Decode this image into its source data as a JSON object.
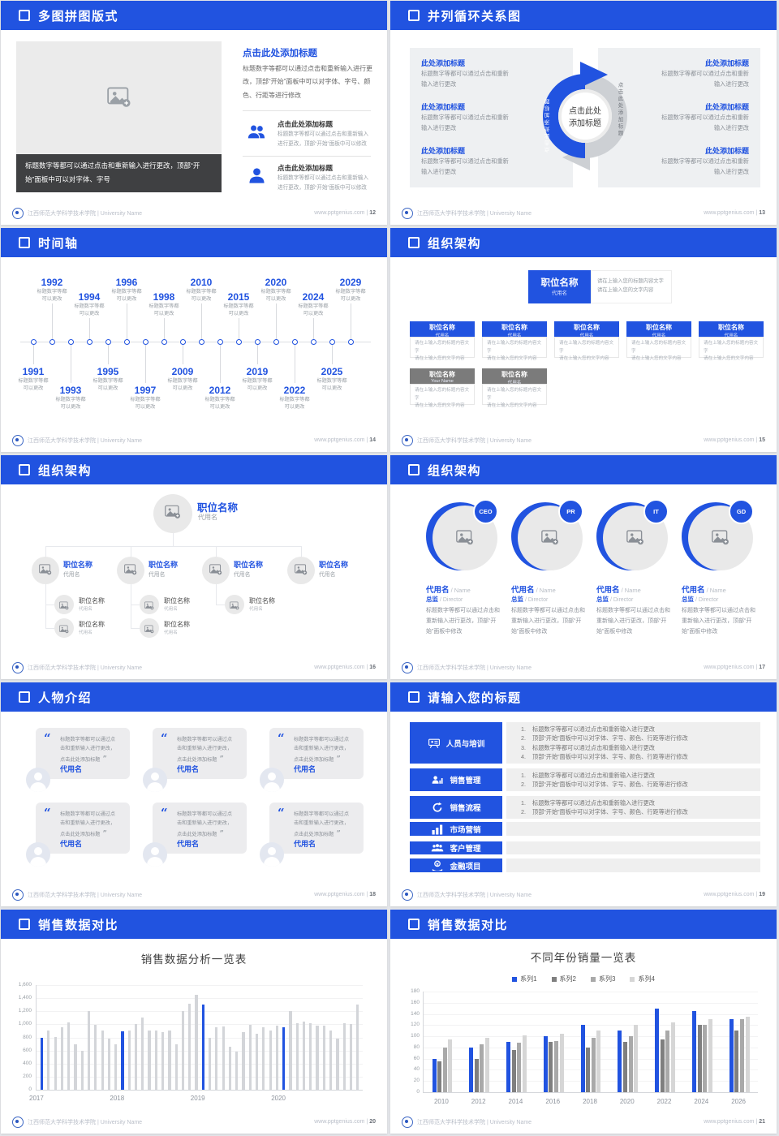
{
  "footer": {
    "org": "江西师范大学科学技术学院",
    "sep": "|",
    "org_en": "University Name",
    "site": "www.pptgenius.com"
  },
  "colors": {
    "accent": "#2153e0",
    "bar_gray": "#d3d5d9",
    "panel_gray": "#eef0f2",
    "dark_caption": "#3f4042"
  },
  "icons": {
    "quote_open": "“",
    "quote_close": "”"
  },
  "slides": {
    "s1": {
      "title": "多图拼图版式",
      "page": "12",
      "caption": "标题数字等都可以通过点击和重新输入进行更改，顶部“开始”面板中可以对字体、字号",
      "right_title": "点击此处添加标题",
      "right_body": "标题数字等都可以通过点击和重新输入进行更改，顶部“开始”面板中可以对字体、字号、颜色、行距等进行修改",
      "items": [
        {
          "icon": "users",
          "title": "点击此处添加标题",
          "text": "标题数字等都可以通过点击和重新输入进行更改，顶部“开始”面板中可以修改"
        },
        {
          "icon": "user",
          "title": "点击此处添加标题",
          "text": "标题数字等都可以通过点击和重新输入进行更改，顶部“开始”面板中可以修改"
        }
      ]
    },
    "s2": {
      "title": "并列循环关系图",
      "page": "13",
      "center_l1": "点击此处",
      "center_l2": "添加标题",
      "arc_label_left": "点击此处添加标题",
      "arc_label_right": "点击此处添加标题",
      "left_items": [
        {
          "title": "此处添加标题",
          "text": "标题数字等都可以通过点击和重新输入进行更改"
        },
        {
          "title": "此处添加标题",
          "text": "标题数字等都可以通过点击和重新输入进行更改"
        },
        {
          "title": "此处添加标题",
          "text": "标题数字等都可以通过点击和重新输入进行更改"
        }
      ],
      "right_items": [
        {
          "title": "此处添加标题",
          "text": "标题数字等都可以通过点击和重新输入进行更改"
        },
        {
          "title": "此处添加标题",
          "text": "标题数字等都可以通过点击和重新输入进行更改"
        },
        {
          "title": "此处添加标题",
          "text": "标题数字等都可以通过点击和重新输入进行更改"
        }
      ]
    },
    "s3": {
      "title": "时间轴",
      "page": "14",
      "note_l1": "标题数字等都",
      "note_l2": "可以更改",
      "points": [
        {
          "year": "1991",
          "dir": "down",
          "far": false
        },
        {
          "year": "1992",
          "dir": "up",
          "far": true
        },
        {
          "year": "1993",
          "dir": "down",
          "far": true
        },
        {
          "year": "1994",
          "dir": "up",
          "far": false
        },
        {
          "year": "1995",
          "dir": "down",
          "far": false
        },
        {
          "year": "1996",
          "dir": "up",
          "far": true
        },
        {
          "year": "1997",
          "dir": "down",
          "far": true
        },
        {
          "year": "1998",
          "dir": "up",
          "far": false
        },
        {
          "year": "2009",
          "dir": "down",
          "far": false
        },
        {
          "year": "2010",
          "dir": "up",
          "far": true
        },
        {
          "year": "2012",
          "dir": "down",
          "far": true
        },
        {
          "year": "2015",
          "dir": "up",
          "far": false
        },
        {
          "year": "2019",
          "dir": "down",
          "far": false
        },
        {
          "year": "2020",
          "dir": "up",
          "far": true
        },
        {
          "year": "2022",
          "dir": "down",
          "far": true
        },
        {
          "year": "2024",
          "dir": "up",
          "far": false
        },
        {
          "year": "2025",
          "dir": "down",
          "far": false
        },
        {
          "year": "2029",
          "dir": "up",
          "far": true
        }
      ]
    },
    "s4": {
      "title": "组织架构",
      "page": "15",
      "root": {
        "title": "职位名称",
        "sub": "代用名"
      },
      "note_l1": "请在上输入您的标题内容文字",
      "note_l2": "请在上输入您的文字内容",
      "row1": [
        {
          "title": "职位名称",
          "sub": "代用名",
          "l1": "请在上输入您的标题内容文字",
          "l2": "请在上输入您的文字内容"
        },
        {
          "title": "职位名称",
          "sub": "代用名",
          "l1": "请在上输入您的标题内容文字",
          "l2": "请在上输入您的文字内容"
        },
        {
          "title": "职位名称",
          "sub": "代用名",
          "l1": "请在上输入您的标题内容文字",
          "l2": "请在上输入您的文字内容"
        },
        {
          "title": "职位名称",
          "sub": "代用名",
          "l1": "请在上输入您的标题内容文字",
          "l2": "请在上输入您的文字内容"
        },
        {
          "title": "职位名称",
          "sub": "代用名",
          "l1": "请在上输入您的标题内容文字",
          "l2": "请在上输入您的文字内容"
        }
      ],
      "row2": [
        {
          "title": "职位名称",
          "sub": "Your Name",
          "l1": "请在上输入您的标题内容文字",
          "l2": "请在上输入您的文字内容"
        },
        {
          "title": "职位名称",
          "sub": "代用名",
          "l1": "请在上输入您的标题内容文字",
          "l2": "请在上输入您的文字内容"
        }
      ]
    },
    "s5": {
      "title": "组织架构",
      "page": "16",
      "root": {
        "title": "职位名称",
        "sub": "代用名"
      },
      "cols": [
        {
          "title": "职位名称",
          "sub": "代用名",
          "children": [
            {
              "title": "职位名称",
              "sub": "代用名"
            },
            {
              "title": "职位名称",
              "sub": "代用名"
            }
          ]
        },
        {
          "title": "职位名称",
          "sub": "代用名",
          "children": [
            {
              "title": "职位名称",
              "sub": "代用名"
            },
            {
              "title": "职位名称",
              "sub": "代用名"
            }
          ]
        },
        {
          "title": "职位名称",
          "sub": "代用名",
          "children": [
            {
              "title": "职位名称",
              "sub": "代用名"
            }
          ]
        },
        {
          "title": "职位名称",
          "sub": "代用名",
          "children": []
        }
      ]
    },
    "s6": {
      "title": "组织架构",
      "page": "17",
      "cards": [
        {
          "badge": "CEO",
          "name": "代用名",
          "name_en": "Name",
          "role": "总监",
          "role_en": "Director",
          "text": "标题数字等都可以通过点击和重新输入进行更改，顶部“开始”面板中修改"
        },
        {
          "badge": "PR",
          "name": "代用名",
          "name_en": "Name",
          "role": "总监",
          "role_en": "Director",
          "text": "标题数字等都可以通过点击和重新输入进行更改，顶部“开始”面板中修改"
        },
        {
          "badge": "IT",
          "name": "代用名",
          "name_en": "Name",
          "role": "总监",
          "role_en": "Director",
          "text": "标题数字等都可以通过点击和重新输入进行更改，顶部“开始”面板中修改"
        },
        {
          "badge": "GD",
          "name": "代用名",
          "name_en": "Name",
          "role": "总监",
          "role_en": "Director",
          "text": "标题数字等都可以通过点击和重新输入进行更改，顶部“开始”面板中修改"
        }
      ]
    },
    "s7": {
      "title": "人物介绍",
      "page": "18",
      "cards": [
        {
          "text": "标题数字等都可以通过点击和重新输入进行更改，点击此处添加标题",
          "name": "代用名"
        },
        {
          "text": "标题数字等都可以通过点击和重新输入进行更改，点击此处添加标题",
          "name": "代用名"
        },
        {
          "text": "标题数字等都可以通过点击和重新输入进行更改，点击此处添加标题",
          "name": "代用名"
        },
        {
          "text": "标题数字等都可以通过点击和重新输入进行更改，点击此处添加标题",
          "name": "代用名"
        },
        {
          "text": "标题数字等都可以通过点击和重新输入进行更改，点击此处添加标题",
          "name": "代用名"
        },
        {
          "text": "标题数字等都可以通过点击和重新输入进行更改，点击此处添加标题",
          "name": "代用名"
        }
      ]
    },
    "s8": {
      "title": "请输入您的标题",
      "page": "19",
      "rows": [
        {
          "icon": "training",
          "label": "人员与培训",
          "numbered": true,
          "lines": [
            "标题数字等都可以通过点击和重新输入进行更改",
            "顶部“开始”面板中可以对字体、字号、颜色、行距等进行修改",
            "标题数字等都可以通过点击和重新输入进行更改",
            "顶部“开始”面板中可以对字体、字号、颜色、行距等进行修改"
          ]
        },
        {
          "icon": "sales",
          "label": "销售管理",
          "numbered": true,
          "lines": [
            "标题数字等都可以通过点击和重新输入进行更改",
            "顶部“开始”面板中可以对字体、字号、颜色、行距等进行修改"
          ]
        },
        {
          "icon": "cycle",
          "label": "销售流程",
          "numbered": true,
          "lines": [
            "标题数字等都可以通过点击和重新输入进行更改",
            "顶部“开始”面板中可以对字体、字号、颜色、行距等进行修改"
          ]
        },
        {
          "icon": "chart",
          "label": "市场营销",
          "numbered": false,
          "lines": [
            "标题数字等都可以通过点击和重新输入进行更改"
          ]
        },
        {
          "icon": "people",
          "label": "客户管理",
          "numbered": false,
          "lines": [
            "标题数字等都可以通过点击和重新"
          ]
        },
        {
          "icon": "finance",
          "label": "金融项目",
          "numbered": false,
          "lines": [
            "标题数字等都可以通过点击"
          ]
        }
      ]
    },
    "s9": {
      "title": "销售数据对比",
      "page": "20"
    },
    "s10": {
      "title": "销售数据对比",
      "page": "21"
    }
  },
  "chart_data": [
    {
      "type": "bar",
      "title": "销售数据分析一览表",
      "xlabel": "",
      "ylabel": "",
      "ylim": [
        0,
        1600
      ],
      "ytick_step": 200,
      "grid": true,
      "categories": [
        "2017",
        "2018",
        "2019",
        "2020"
      ],
      "highlight_color": "#2153e0",
      "normal_color": "#d3d5d9",
      "highlight_rule": "first bar of each year group",
      "values_monthly": [
        [
          800,
          900,
          810,
          950,
          1030,
          700,
          600,
          1200,
          990,
          900,
          780,
          700
        ],
        [
          890,
          900,
          1000,
          1100,
          900,
          900,
          880,
          900,
          700,
          1200,
          1310,
          1450
        ],
        [
          1300,
          800,
          960,
          970,
          660,
          580,
          880,
          990,
          860,
          960,
          900,
          980
        ],
        [
          950,
          1200,
          1020,
          1040,
          1020,
          980,
          980,
          900,
          780,
          1020,
          1000,
          1300
        ]
      ]
    },
    {
      "type": "bar",
      "title": "不同年份销量一览表",
      "xlabel": "",
      "ylabel": "",
      "ylim": [
        0,
        180
      ],
      "ytick_step": 20,
      "grid": true,
      "legend_position": "top",
      "categories": [
        "2010",
        "2012",
        "2014",
        "2016",
        "2018",
        "2020",
        "2022",
        "2024",
        "2026"
      ],
      "series": [
        {
          "name": "系列1",
          "color": "#2153e0",
          "values": [
            60,
            80,
            90,
            100,
            120,
            110,
            150,
            145,
            130
          ]
        },
        {
          "name": "系列2",
          "color": "#7f7f7f",
          "values": [
            55,
            60,
            75,
            90,
            80,
            90,
            95,
            120,
            110
          ]
        },
        {
          "name": "系列3",
          "color": "#a9a9a9",
          "values": [
            80,
            85,
            88,
            92,
            97,
            100,
            110,
            120,
            130
          ]
        },
        {
          "name": "系列4",
          "color": "#d6d6d6",
          "values": [
            95,
            98,
            102,
            105,
            110,
            120,
            125,
            130,
            135
          ]
        }
      ]
    }
  ]
}
